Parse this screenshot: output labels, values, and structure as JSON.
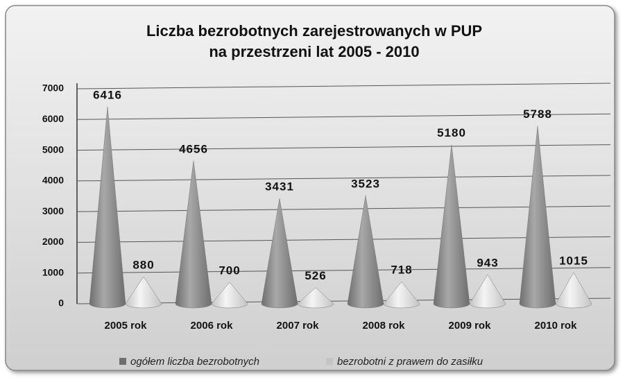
{
  "chart_data": {
    "type": "cone-bar",
    "title": [
      "Liczba bezrobotnych zarejestrowanych w PUP",
      "na przestrzeni lat 2005 - 2010"
    ],
    "categories": [
      "2005 rok",
      "2006 rok",
      "2007 rok",
      "2008 rok",
      "2009 rok",
      "2010 rok"
    ],
    "series": [
      {
        "name": "ogółem liczba bezrobotnych",
        "color": "#6e6e6e",
        "values": [
          6416,
          4656,
          3431,
          3523,
          5180,
          5788
        ]
      },
      {
        "name": "bezrobotni z prawem do zasiłku",
        "color": "#c4c4c4",
        "values": [
          880,
          700,
          526,
          718,
          943,
          1015
        ]
      }
    ],
    "ylim": [
      0,
      7000
    ],
    "yticks": [
      0,
      1000,
      2000,
      3000,
      4000,
      5000,
      6000,
      7000
    ],
    "grid": true,
    "legend": "bottom"
  }
}
